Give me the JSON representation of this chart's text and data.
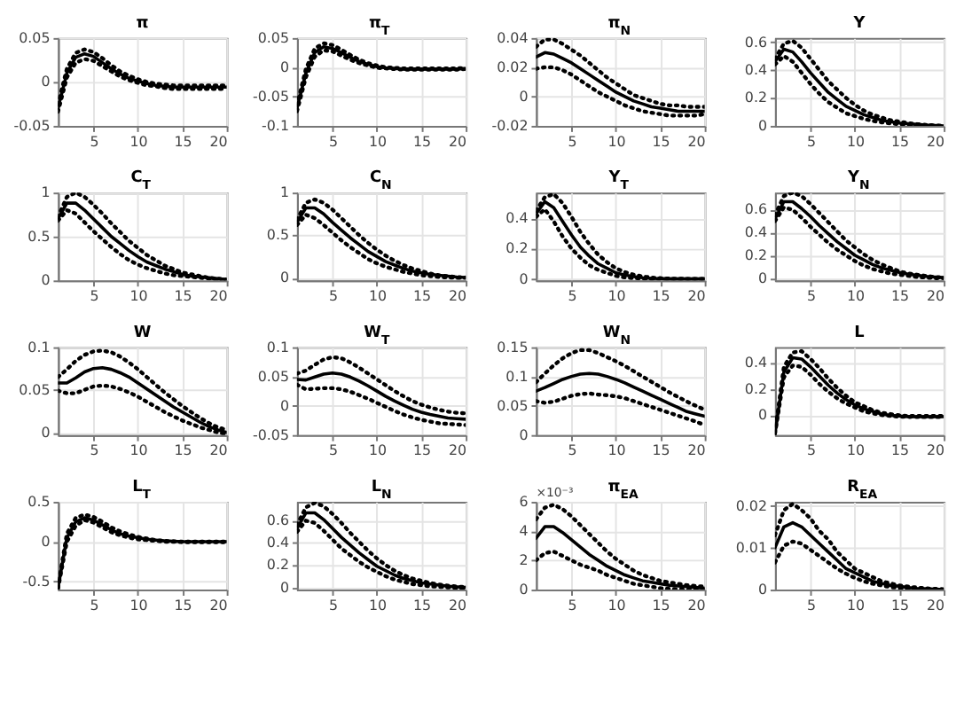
{
  "chart_data": [
    {
      "type": "line",
      "title": "π",
      "x": [
        1,
        2,
        3,
        4,
        5,
        6,
        7,
        8,
        9,
        10,
        11,
        12,
        13,
        14,
        15,
        16,
        17,
        18,
        19,
        20
      ],
      "xlim": [
        1,
        20
      ],
      "xticks": [
        5,
        10,
        15,
        20
      ],
      "ylim": [
        -0.05,
        0.05
      ],
      "yticks": [
        -0.05,
        0,
        0.05
      ],
      "grid": true,
      "series": [
        {
          "color": "#000000",
          "line_style": "solid",
          "values": [
            -0.03,
            0.01,
            0.028,
            0.032,
            0.029,
            0.022,
            0.015,
            0.009,
            0.004,
            0.001,
            -0.002,
            -0.004,
            -0.005,
            -0.006,
            -0.006,
            -0.006,
            -0.006,
            -0.006,
            -0.006,
            -0.006
          ]
        },
        {
          "color": "#000000",
          "line_style": "dotted",
          "values": [
            -0.026,
            0.015,
            0.033,
            0.037,
            0.034,
            0.027,
            0.019,
            0.012,
            0.007,
            0.003,
            0,
            -0.002,
            -0.003,
            -0.004,
            -0.004,
            -0.004,
            -0.004,
            -0.004,
            -0.004,
            -0.004
          ]
        },
        {
          "color": "#000000",
          "line_style": "dotted",
          "values": [
            -0.034,
            0.005,
            0.022,
            0.026,
            0.024,
            0.018,
            0.012,
            0.006,
            0.002,
            -0.001,
            -0.004,
            -0.005,
            -0.007,
            -0.008,
            -0.008,
            -0.008,
            -0.008,
            -0.008,
            -0.008,
            -0.008
          ]
        }
      ]
    },
    {
      "type": "line",
      "title": "π$_{T}$",
      "x": [
        1,
        2,
        3,
        4,
        5,
        6,
        7,
        8,
        9,
        10,
        11,
        12,
        13,
        14,
        15,
        16,
        17,
        18,
        19,
        20
      ],
      "xlim": [
        1,
        20
      ],
      "xticks": [
        5,
        10,
        15,
        20
      ],
      "ylim": [
        -0.1,
        0.05
      ],
      "yticks": [
        -0.1,
        -0.05,
        0,
        0.05
      ],
      "grid": true,
      "series": [
        {
          "color": "#000000",
          "line_style": "solid",
          "values": [
            -0.07,
            -0.01,
            0.025,
            0.035,
            0.032,
            0.025,
            0.017,
            0.01,
            0.005,
            0.001,
            -0.001,
            -0.002,
            -0.003,
            -0.003,
            -0.003,
            -0.003,
            -0.003,
            -0.003,
            -0.003,
            -0.002
          ]
        },
        {
          "color": "#000000",
          "line_style": "dotted",
          "values": [
            -0.065,
            -0.003,
            0.032,
            0.041,
            0.038,
            0.03,
            0.021,
            0.013,
            0.007,
            0.003,
            0,
            -0.001,
            -0.002,
            -0.002,
            -0.002,
            -0.002,
            -0.002,
            -0.002,
            -0.002,
            -0.001
          ]
        },
        {
          "color": "#000000",
          "line_style": "dotted",
          "values": [
            -0.075,
            -0.017,
            0.018,
            0.029,
            0.027,
            0.02,
            0.013,
            0.007,
            0.003,
            -0.001,
            -0.002,
            -0.003,
            -0.004,
            -0.004,
            -0.004,
            -0.004,
            -0.004,
            -0.004,
            -0.004,
            -0.003
          ]
        }
      ]
    },
    {
      "type": "line",
      "title": "π$_{N}$",
      "x": [
        1,
        2,
        3,
        4,
        5,
        6,
        7,
        8,
        9,
        10,
        11,
        12,
        13,
        14,
        15,
        16,
        17,
        18,
        19,
        20
      ],
      "xlim": [
        1,
        20
      ],
      "xticks": [
        5,
        10,
        15,
        20
      ],
      "ylim": [
        -0.02,
        0.04
      ],
      "yticks": [
        -0.02,
        0,
        0.02,
        0.04
      ],
      "grid": true,
      "series": [
        {
          "color": "#000000",
          "line_style": "solid",
          "values": [
            0.027,
            0.03,
            0.029,
            0.026,
            0.023,
            0.019,
            0.015,
            0.011,
            0.007,
            0.003,
            0,
            -0.003,
            -0.005,
            -0.007,
            -0.008,
            -0.009,
            -0.01,
            -0.01,
            -0.01,
            -0.01
          ]
        },
        {
          "color": "#000000",
          "line_style": "dotted",
          "values": [
            0.034,
            0.039,
            0.039,
            0.036,
            0.032,
            0.028,
            0.023,
            0.018,
            0.013,
            0.009,
            0.005,
            0.001,
            -0.001,
            -0.003,
            -0.005,
            -0.006,
            -0.006,
            -0.007,
            -0.007,
            -0.007
          ]
        },
        {
          "color": "#000000",
          "line_style": "dotted",
          "values": [
            0.019,
            0.02,
            0.02,
            0.018,
            0.015,
            0.011,
            0.007,
            0.003,
            0,
            -0.003,
            -0.006,
            -0.008,
            -0.01,
            -0.011,
            -0.012,
            -0.013,
            -0.013,
            -0.013,
            -0.013,
            -0.012
          ]
        }
      ]
    },
    {
      "type": "line",
      "title": "Y",
      "x": [
        1,
        2,
        3,
        4,
        5,
        6,
        7,
        8,
        9,
        10,
        11,
        12,
        13,
        14,
        15,
        16,
        17,
        18,
        19,
        20
      ],
      "xlim": [
        1,
        20
      ],
      "xticks": [
        5,
        10,
        15,
        20
      ],
      "ylim": [
        0,
        0.63
      ],
      "yticks": [
        0,
        0.2,
        0.4,
        0.6
      ],
      "grid": true,
      "series": [
        {
          "color": "#000000",
          "line_style": "solid",
          "values": [
            0.46,
            0.55,
            0.53,
            0.46,
            0.38,
            0.31,
            0.24,
            0.19,
            0.14,
            0.11,
            0.08,
            0.06,
            0.04,
            0.03,
            0.02,
            0.015,
            0.01,
            0.005,
            0.002,
            0
          ]
        },
        {
          "color": "#000000",
          "line_style": "dotted",
          "values": [
            0.48,
            0.59,
            0.61,
            0.56,
            0.48,
            0.4,
            0.32,
            0.26,
            0.2,
            0.15,
            0.11,
            0.08,
            0.06,
            0.04,
            0.03,
            0.02,
            0.012,
            0.007,
            0.003,
            0
          ]
        },
        {
          "color": "#000000",
          "line_style": "dotted",
          "values": [
            0.44,
            0.5,
            0.46,
            0.38,
            0.3,
            0.23,
            0.17,
            0.13,
            0.09,
            0.07,
            0.05,
            0.035,
            0.025,
            0.018,
            0.012,
            0.008,
            0.005,
            0.003,
            0.001,
            0
          ]
        }
      ]
    },
    {
      "type": "line",
      "title": "C$_{T}$",
      "x": [
        1,
        2,
        3,
        4,
        5,
        6,
        7,
        8,
        9,
        10,
        11,
        12,
        13,
        14,
        15,
        16,
        17,
        18,
        19,
        20
      ],
      "xlim": [
        1,
        20
      ],
      "xticks": [
        5,
        10,
        15,
        20
      ],
      "ylim": [
        0,
        1
      ],
      "yticks": [
        0,
        0.5,
        1
      ],
      "grid": true,
      "series": [
        {
          "color": "#000000",
          "line_style": "solid",
          "values": [
            0.7,
            0.88,
            0.88,
            0.8,
            0.7,
            0.6,
            0.5,
            0.42,
            0.34,
            0.27,
            0.21,
            0.17,
            0.13,
            0.1,
            0.07,
            0.05,
            0.04,
            0.03,
            0.02,
            0.01
          ]
        },
        {
          "color": "#000000",
          "line_style": "dotted",
          "values": [
            0.72,
            0.95,
            1.0,
            0.95,
            0.86,
            0.76,
            0.65,
            0.55,
            0.45,
            0.37,
            0.29,
            0.23,
            0.17,
            0.13,
            0.09,
            0.07,
            0.05,
            0.03,
            0.02,
            0.01
          ]
        },
        {
          "color": "#000000",
          "line_style": "dotted",
          "values": [
            0.68,
            0.8,
            0.76,
            0.66,
            0.56,
            0.47,
            0.38,
            0.3,
            0.23,
            0.18,
            0.14,
            0.11,
            0.08,
            0.06,
            0.05,
            0.04,
            0.03,
            0.02,
            0.01,
            0.005
          ]
        }
      ]
    },
    {
      "type": "line",
      "title": "C$_{N}$",
      "x": [
        1,
        2,
        3,
        4,
        5,
        6,
        7,
        8,
        9,
        10,
        11,
        12,
        13,
        14,
        15,
        16,
        17,
        18,
        19,
        20
      ],
      "xlim": [
        1,
        20
      ],
      "xticks": [
        5,
        10,
        15,
        20
      ],
      "ylim": [
        -0.03,
        1
      ],
      "yticks": [
        0,
        0.5,
        1
      ],
      "grid": true,
      "series": [
        {
          "color": "#000000",
          "line_style": "solid",
          "values": [
            0.65,
            0.82,
            0.82,
            0.75,
            0.65,
            0.56,
            0.47,
            0.39,
            0.31,
            0.25,
            0.19,
            0.15,
            0.11,
            0.08,
            0.06,
            0.04,
            0.03,
            0.02,
            0.01,
            0.005
          ]
        },
        {
          "color": "#000000",
          "line_style": "dotted",
          "values": [
            0.68,
            0.88,
            0.92,
            0.88,
            0.8,
            0.7,
            0.6,
            0.5,
            0.41,
            0.33,
            0.26,
            0.2,
            0.15,
            0.11,
            0.08,
            0.05,
            0.03,
            0.02,
            0.01,
            0.005
          ]
        },
        {
          "color": "#000000",
          "line_style": "dotted",
          "values": [
            0.62,
            0.74,
            0.7,
            0.62,
            0.53,
            0.44,
            0.36,
            0.29,
            0.22,
            0.17,
            0.13,
            0.1,
            0.07,
            0.05,
            0.03,
            0.02,
            0.01,
            0.005,
            0,
            0
          ]
        }
      ]
    },
    {
      "type": "line",
      "title": "Y$_{T}$",
      "x": [
        1,
        2,
        3,
        4,
        5,
        6,
        7,
        8,
        9,
        10,
        11,
        12,
        13,
        14,
        15,
        16,
        17,
        18,
        19,
        20
      ],
      "xlim": [
        1,
        20
      ],
      "xticks": [
        5,
        10,
        15,
        20
      ],
      "ylim": [
        -0.01,
        0.57
      ],
      "yticks": [
        0,
        0.2,
        0.4
      ],
      "grid": true,
      "series": [
        {
          "color": "#000000",
          "line_style": "solid",
          "values": [
            0.43,
            0.51,
            0.47,
            0.38,
            0.29,
            0.21,
            0.15,
            0.1,
            0.07,
            0.04,
            0.025,
            0.015,
            0.008,
            0.004,
            0.002,
            0,
            0,
            0,
            0,
            0
          ]
        },
        {
          "color": "#000000",
          "line_style": "dotted",
          "values": [
            0.45,
            0.54,
            0.56,
            0.5,
            0.41,
            0.31,
            0.23,
            0.16,
            0.11,
            0.07,
            0.045,
            0.028,
            0.016,
            0.009,
            0.005,
            0.002,
            0.001,
            0,
            0,
            0
          ]
        },
        {
          "color": "#000000",
          "line_style": "dotted",
          "values": [
            0.41,
            0.46,
            0.38,
            0.28,
            0.2,
            0.14,
            0.09,
            0.06,
            0.04,
            0.02,
            0.01,
            0.005,
            0.002,
            0,
            0,
            0,
            0,
            0,
            0,
            0
          ]
        }
      ]
    },
    {
      "type": "line",
      "title": "Y$_{N}$",
      "x": [
        1,
        2,
        3,
        4,
        5,
        6,
        7,
        8,
        9,
        10,
        11,
        12,
        13,
        14,
        15,
        16,
        17,
        18,
        19,
        20
      ],
      "xlim": [
        1,
        20
      ],
      "xticks": [
        5,
        10,
        15,
        20
      ],
      "ylim": [
        -0.02,
        0.75
      ],
      "yticks": [
        0,
        0.2,
        0.4,
        0.6
      ],
      "grid": true,
      "series": [
        {
          "color": "#000000",
          "line_style": "solid",
          "values": [
            0.52,
            0.67,
            0.67,
            0.61,
            0.54,
            0.46,
            0.39,
            0.32,
            0.26,
            0.2,
            0.16,
            0.12,
            0.09,
            0.07,
            0.05,
            0.035,
            0.025,
            0.015,
            0.01,
            0.005
          ]
        },
        {
          "color": "#000000",
          "line_style": "dotted",
          "values": [
            0.55,
            0.72,
            0.75,
            0.72,
            0.65,
            0.57,
            0.49,
            0.41,
            0.33,
            0.27,
            0.21,
            0.16,
            0.12,
            0.09,
            0.06,
            0.04,
            0.03,
            0.02,
            0.01,
            0.005
          ]
        },
        {
          "color": "#000000",
          "line_style": "dotted",
          "values": [
            0.5,
            0.62,
            0.6,
            0.53,
            0.45,
            0.38,
            0.31,
            0.25,
            0.2,
            0.15,
            0.11,
            0.08,
            0.06,
            0.04,
            0.03,
            0.02,
            0.01,
            0.005,
            0,
            0
          ]
        }
      ]
    },
    {
      "type": "line",
      "title": "W",
      "x": [
        1,
        2,
        3,
        4,
        5,
        6,
        7,
        8,
        9,
        10,
        11,
        12,
        13,
        14,
        15,
        16,
        17,
        18,
        19,
        20
      ],
      "xlim": [
        1,
        20
      ],
      "xticks": [
        5,
        10,
        15,
        20
      ],
      "ylim": [
        -0.003,
        0.1
      ],
      "yticks": [
        0,
        0.05,
        0.1
      ],
      "grid": true,
      "series": [
        {
          "color": "#000000",
          "line_style": "solid",
          "values": [
            0.058,
            0.058,
            0.064,
            0.071,
            0.075,
            0.076,
            0.074,
            0.07,
            0.065,
            0.058,
            0.051,
            0.044,
            0.037,
            0.03,
            0.024,
            0.018,
            0.012,
            0.007,
            0.003,
            0
          ]
        },
        {
          "color": "#000000",
          "line_style": "dotted",
          "values": [
            0.065,
            0.074,
            0.084,
            0.091,
            0.095,
            0.096,
            0.094,
            0.089,
            0.082,
            0.074,
            0.065,
            0.056,
            0.047,
            0.039,
            0.031,
            0.024,
            0.017,
            0.011,
            0.006,
            0.003
          ]
        },
        {
          "color": "#000000",
          "line_style": "dotted",
          "values": [
            0.049,
            0.046,
            0.046,
            0.05,
            0.054,
            0.055,
            0.054,
            0.051,
            0.047,
            0.042,
            0.036,
            0.03,
            0.024,
            0.019,
            0.014,
            0.01,
            0.006,
            0.003,
            0,
            -0.002
          ]
        }
      ]
    },
    {
      "type": "line",
      "title": "W$_{T}$",
      "x": [
        1,
        2,
        3,
        4,
        5,
        6,
        7,
        8,
        9,
        10,
        11,
        12,
        13,
        14,
        15,
        16,
        17,
        18,
        19,
        20
      ],
      "xlim": [
        1,
        20
      ],
      "xticks": [
        5,
        10,
        15,
        20
      ],
      "ylim": [
        -0.05,
        0.1
      ],
      "yticks": [
        -0.05,
        0,
        0.05,
        0.1
      ],
      "grid": true,
      "series": [
        {
          "color": "#000000",
          "line_style": "solid",
          "values": [
            0.045,
            0.044,
            0.049,
            0.054,
            0.056,
            0.054,
            0.049,
            0.042,
            0.034,
            0.025,
            0.016,
            0.008,
            0.001,
            -0.006,
            -0.011,
            -0.015,
            -0.018,
            -0.021,
            -0.022,
            -0.023
          ]
        },
        {
          "color": "#000000",
          "line_style": "dotted",
          "values": [
            0.055,
            0.06,
            0.07,
            0.079,
            0.083,
            0.081,
            0.074,
            0.065,
            0.055,
            0.045,
            0.035,
            0.025,
            0.016,
            0.008,
            0.002,
            -0.003,
            -0.007,
            -0.01,
            -0.012,
            -0.013
          ]
        },
        {
          "color": "#000000",
          "line_style": "dotted",
          "values": [
            0.036,
            0.028,
            0.029,
            0.03,
            0.03,
            0.028,
            0.024,
            0.018,
            0.012,
            0.005,
            -0.002,
            -0.009,
            -0.015,
            -0.02,
            -0.024,
            -0.027,
            -0.03,
            -0.031,
            -0.032,
            -0.033
          ]
        }
      ]
    },
    {
      "type": "line",
      "title": "W$_{N}$",
      "x": [
        1,
        2,
        3,
        4,
        5,
        6,
        7,
        8,
        9,
        10,
        11,
        12,
        13,
        14,
        15,
        16,
        17,
        18,
        19,
        20
      ],
      "xlim": [
        1,
        20
      ],
      "xticks": [
        5,
        10,
        15,
        20
      ],
      "ylim": [
        0,
        0.15
      ],
      "yticks": [
        0,
        0.05,
        0.1,
        0.15
      ],
      "grid": true,
      "series": [
        {
          "color": "#000000",
          "line_style": "solid",
          "values": [
            0.075,
            0.081,
            0.088,
            0.095,
            0.1,
            0.104,
            0.105,
            0.104,
            0.1,
            0.095,
            0.089,
            0.082,
            0.075,
            0.068,
            0.061,
            0.054,
            0.047,
            0.04,
            0.036,
            0.032
          ]
        },
        {
          "color": "#000000",
          "line_style": "dotted",
          "values": [
            0.09,
            0.105,
            0.119,
            0.131,
            0.14,
            0.145,
            0.145,
            0.14,
            0.133,
            0.126,
            0.118,
            0.109,
            0.1,
            0.091,
            0.082,
            0.073,
            0.065,
            0.057,
            0.05,
            0.043
          ]
        },
        {
          "color": "#000000",
          "line_style": "dotted",
          "values": [
            0.058,
            0.055,
            0.057,
            0.062,
            0.067,
            0.07,
            0.071,
            0.069,
            0.068,
            0.066,
            0.063,
            0.058,
            0.053,
            0.048,
            0.043,
            0.038,
            0.033,
            0.028,
            0.023,
            0.017
          ]
        }
      ]
    },
    {
      "type": "line",
      "title": "L",
      "x": [
        1,
        2,
        3,
        4,
        5,
        6,
        7,
        8,
        9,
        10,
        11,
        12,
        13,
        14,
        15,
        16,
        17,
        18,
        19,
        20
      ],
      "xlim": [
        1,
        20
      ],
      "xticks": [
        5,
        10,
        15,
        20
      ],
      "ylim": [
        -0.15,
        0.52
      ],
      "yticks": [
        0,
        0.2,
        0.4
      ],
      "grid": true,
      "series": [
        {
          "color": "#000000",
          "line_style": "solid",
          "values": [
            -0.14,
            0.33,
            0.44,
            0.43,
            0.37,
            0.3,
            0.23,
            0.17,
            0.12,
            0.08,
            0.05,
            0.03,
            0.01,
            0,
            -0.005,
            -0.01,
            -0.01,
            -0.01,
            -0.01,
            -0.01
          ]
        },
        {
          "color": "#000000",
          "line_style": "dotted",
          "values": [
            -0.13,
            0.37,
            0.48,
            0.49,
            0.43,
            0.36,
            0.28,
            0.21,
            0.15,
            0.1,
            0.07,
            0.04,
            0.02,
            0.01,
            0,
            -0.005,
            -0.005,
            -0.005,
            -0.005,
            -0.005
          ]
        },
        {
          "color": "#000000",
          "line_style": "dotted",
          "values": [
            -0.14,
            0.29,
            0.38,
            0.37,
            0.31,
            0.24,
            0.18,
            0.13,
            0.09,
            0.06,
            0.03,
            0.015,
            0.003,
            -0.005,
            -0.01,
            -0.012,
            -0.013,
            -0.013,
            -0.013,
            -0.013
          ]
        }
      ]
    },
    {
      "type": "line",
      "title": "L$_{T}$",
      "x": [
        1,
        2,
        3,
        4,
        5,
        6,
        7,
        8,
        9,
        10,
        11,
        12,
        13,
        14,
        15,
        16,
        17,
        18,
        19,
        20
      ],
      "xlim": [
        1,
        20
      ],
      "xticks": [
        5,
        10,
        15,
        20
      ],
      "ylim": [
        -0.6,
        0.5
      ],
      "yticks": [
        -0.5,
        0,
        0.5
      ],
      "grid": true,
      "series": [
        {
          "color": "#000000",
          "line_style": "solid",
          "values": [
            -0.58,
            0.05,
            0.25,
            0.3,
            0.27,
            0.21,
            0.15,
            0.1,
            0.07,
            0.05,
            0.03,
            0.02,
            0.01,
            0.005,
            0,
            0,
            0,
            0,
            0,
            0
          ]
        },
        {
          "color": "#000000",
          "line_style": "dotted",
          "values": [
            -0.57,
            0.1,
            0.3,
            0.34,
            0.31,
            0.25,
            0.18,
            0.13,
            0.09,
            0.06,
            0.04,
            0.02,
            0.01,
            0.005,
            0,
            0,
            0,
            0,
            0,
            0
          ]
        },
        {
          "color": "#000000",
          "line_style": "dotted",
          "values": [
            -0.59,
            0,
            0.2,
            0.27,
            0.24,
            0.18,
            0.12,
            0.08,
            0.05,
            0.03,
            0.02,
            0.01,
            0,
            0,
            -0.005,
            -0.005,
            -0.005,
            -0.005,
            -0.005,
            -0.005
          ]
        }
      ]
    },
    {
      "type": "line",
      "title": "L$_{N}$",
      "x": [
        1,
        2,
        3,
        4,
        5,
        6,
        7,
        8,
        9,
        10,
        11,
        12,
        13,
        14,
        15,
        16,
        17,
        18,
        19,
        20
      ],
      "xlim": [
        1,
        20
      ],
      "xticks": [
        5,
        10,
        15,
        20
      ],
      "ylim": [
        -0.02,
        0.77
      ],
      "yticks": [
        0,
        0.2,
        0.4,
        0.6
      ],
      "grid": true,
      "series": [
        {
          "color": "#000000",
          "line_style": "solid",
          "values": [
            0.53,
            0.67,
            0.67,
            0.61,
            0.53,
            0.45,
            0.38,
            0.31,
            0.25,
            0.19,
            0.15,
            0.11,
            0.08,
            0.06,
            0.04,
            0.03,
            0.02,
            0.01,
            0.005,
            0
          ]
        },
        {
          "color": "#000000",
          "line_style": "dotted",
          "values": [
            0.56,
            0.72,
            0.76,
            0.73,
            0.66,
            0.58,
            0.49,
            0.41,
            0.33,
            0.26,
            0.2,
            0.15,
            0.11,
            0.08,
            0.06,
            0.04,
            0.025,
            0.015,
            0.008,
            0.003
          ]
        },
        {
          "color": "#000000",
          "line_style": "dotted",
          "values": [
            0.5,
            0.6,
            0.58,
            0.51,
            0.43,
            0.35,
            0.29,
            0.23,
            0.18,
            0.14,
            0.1,
            0.07,
            0.05,
            0.03,
            0.02,
            0.01,
            0.005,
            0,
            -0.005,
            -0.01
          ]
        }
      ]
    },
    {
      "type": "line",
      "title": "π$_{EA}$",
      "annotations": [
        "×10⁻³"
      ],
      "x": [
        1,
        2,
        3,
        4,
        5,
        6,
        7,
        8,
        9,
        10,
        11,
        12,
        13,
        14,
        15,
        16,
        17,
        18,
        19,
        20
      ],
      "xlim": [
        1,
        20
      ],
      "xticks": [
        5,
        10,
        15,
        20
      ],
      "ylim": [
        0,
        6
      ],
      "yticks": [
        0,
        2,
        4,
        6
      ],
      "grid": true,
      "series": [
        {
          "color": "#000000",
          "line_style": "solid",
          "values": [
            3.5,
            4.3,
            4.3,
            3.9,
            3.4,
            2.9,
            2.4,
            2.0,
            1.6,
            1.3,
            1.0,
            0.8,
            0.6,
            0.5,
            0.4,
            0.3,
            0.25,
            0.2,
            0.15,
            0.1
          ]
        },
        {
          "color": "#000000",
          "line_style": "dotted",
          "values": [
            4.8,
            5.6,
            5.8,
            5.5,
            5.0,
            4.4,
            3.8,
            3.2,
            2.6,
            2.1,
            1.7,
            1.3,
            1.0,
            0.8,
            0.6,
            0.5,
            0.4,
            0.3,
            0.25,
            0.2
          ]
        },
        {
          "color": "#000000",
          "line_style": "dotted",
          "values": [
            2.0,
            2.5,
            2.6,
            2.3,
            2.0,
            1.7,
            1.5,
            1.3,
            1.0,
            0.8,
            0.6,
            0.4,
            0.3,
            0.2,
            0.1,
            0.05,
            0.02,
            0.01,
            0,
            0
          ]
        }
      ]
    },
    {
      "type": "line",
      "title": "R$_{EA}$",
      "x": [
        1,
        2,
        3,
        4,
        5,
        6,
        7,
        8,
        9,
        10,
        11,
        12,
        13,
        14,
        15,
        16,
        17,
        18,
        19,
        20
      ],
      "xlim": [
        1,
        20
      ],
      "xticks": [
        5,
        10,
        15,
        20
      ],
      "ylim": [
        0,
        0.021
      ],
      "yticks": [
        0,
        0.01,
        0.02
      ],
      "grid": true,
      "series": [
        {
          "color": "#000000",
          "line_style": "solid",
          "values": [
            0.01,
            0.015,
            0.016,
            0.015,
            0.013,
            0.011,
            0.009,
            0.007,
            0.005,
            0.004,
            0.003,
            0.002,
            0.0015,
            0.001,
            0.0008,
            0.0005,
            0.0003,
            0.0002,
            0.0001,
            0
          ]
        },
        {
          "color": "#000000",
          "line_style": "dotted",
          "values": [
            0.013,
            0.019,
            0.0205,
            0.019,
            0.017,
            0.014,
            0.012,
            0.009,
            0.007,
            0.005,
            0.004,
            0.003,
            0.002,
            0.0015,
            0.001,
            0.0007,
            0.0005,
            0.0003,
            0.0002,
            0.0001
          ]
        },
        {
          "color": "#000000",
          "line_style": "dotted",
          "values": [
            0.0065,
            0.0105,
            0.0115,
            0.011,
            0.0095,
            0.008,
            0.0065,
            0.005,
            0.0038,
            0.0028,
            0.002,
            0.0014,
            0.001,
            0.0006,
            0.0004,
            0.0002,
            0.0001,
            0,
            0,
            0
          ]
        }
      ]
    }
  ]
}
